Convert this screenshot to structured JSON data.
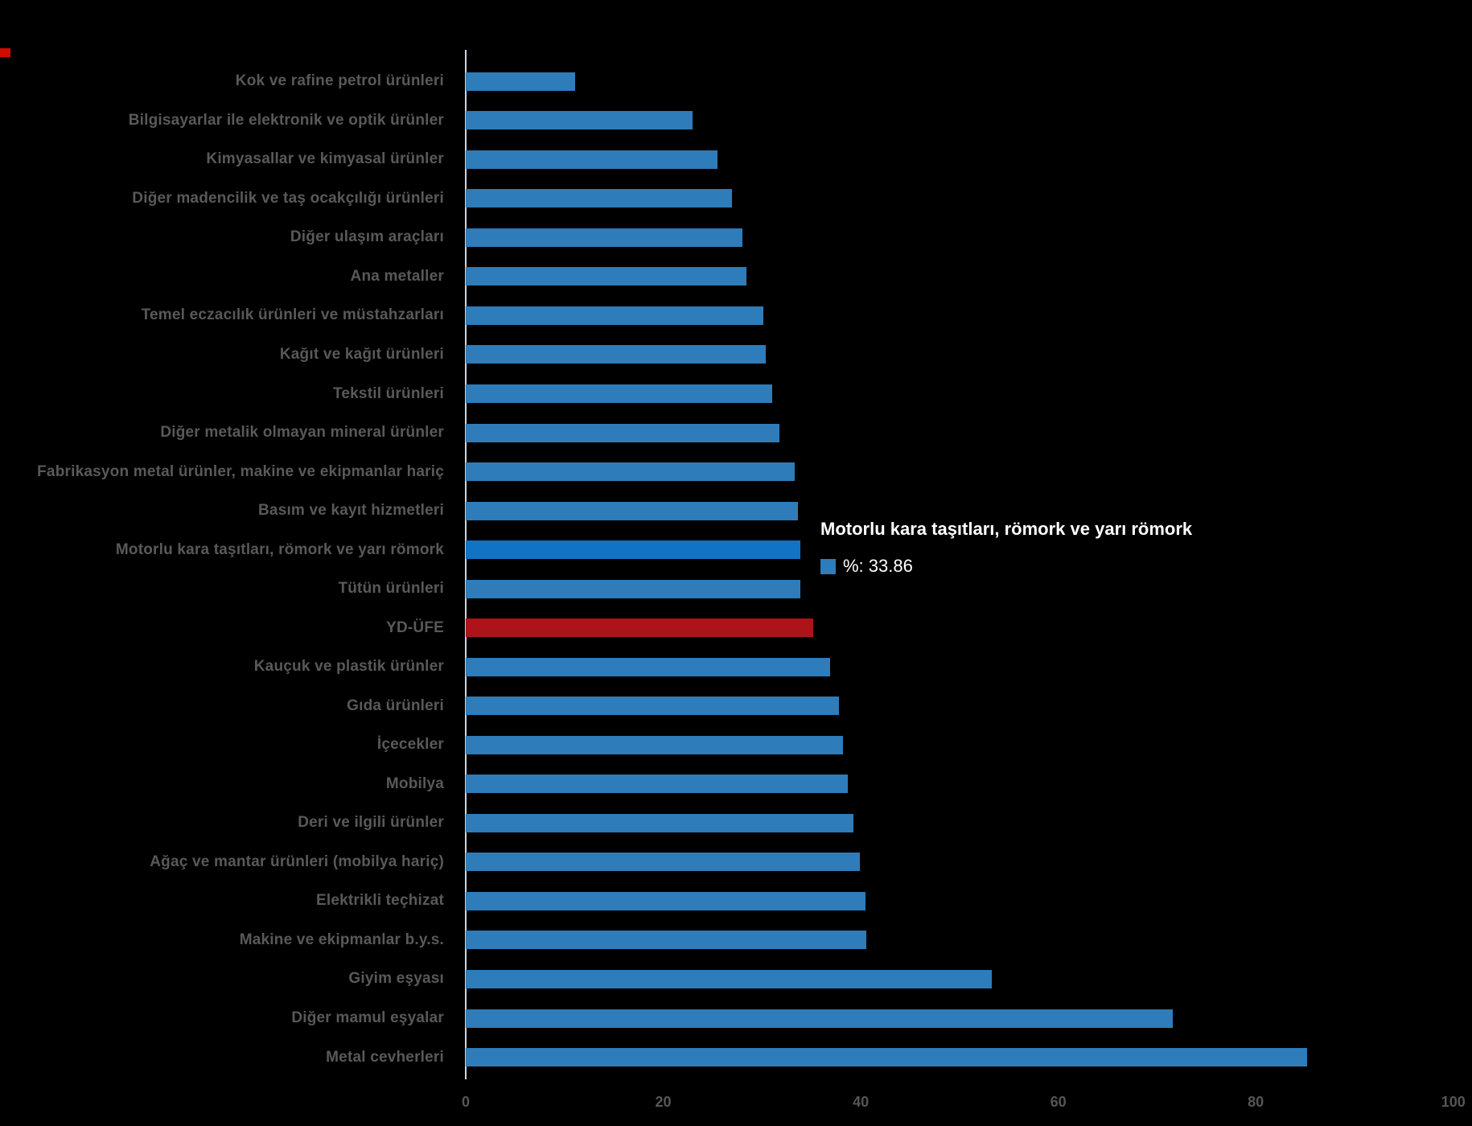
{
  "chart_data": {
    "type": "bar",
    "orientation": "horizontal",
    "title": "",
    "xlabel": "",
    "ylabel": "",
    "xlim": [
      0,
      100
    ],
    "x_ticks": [
      0,
      20,
      40,
      60,
      80,
      100
    ],
    "grid": false,
    "legend": "none",
    "categories": [
      "Kok ve rafine petrol ürünleri",
      "Bilgisayarlar ile elektronik ve optik ürünler",
      "Kimyasallar ve kimyasal ürünler",
      "Diğer madencilik ve taş ocakçılığı ürünleri",
      "Diğer ulaşım araçları",
      "Ana metaller",
      "Temel eczacılık ürünleri ve müstahzarları",
      "Kağıt ve kağıt ürünleri",
      "Tekstil ürünleri",
      "Diğer metalik olmayan mineral ürünler",
      "Fabrikasyon metal ürünler, makine ve ekipmanlar hariç",
      "Basım ve kayıt hizmetleri",
      "Motorlu kara taşıtları, römork ve yarı römork",
      "Tütün ürünleri",
      "YD-ÜFE",
      "Kauçuk ve plastik ürünler",
      "Gıda ürünleri",
      "İçecekler",
      "Mobilya",
      "Deri ve ilgili ürünler",
      "Ağaç ve mantar ürünleri (mobilya hariç)",
      "Elektrikli teçhizat",
      "Makine ve ekipmanlar b.y.s.",
      "Giyim eşyası",
      "Diğer mamul eşyalar",
      "Metal cevherleri"
    ],
    "values": [
      11.1,
      23.0,
      25.5,
      27.0,
      28.0,
      28.4,
      30.1,
      30.4,
      31.0,
      31.8,
      33.3,
      33.6,
      33.86,
      33.9,
      35.2,
      36.9,
      37.8,
      38.2,
      38.7,
      39.3,
      39.9,
      40.5,
      40.6,
      53.3,
      71.6,
      85.2
    ],
    "highlight_index": 12,
    "reference_index": 14
  },
  "tooltip": {
    "title": "Motorlu kara taşıtları, römork ve yarı römork",
    "value_text": "%: 33.86"
  },
  "colors": {
    "background": "#000000",
    "default_bar": "#2e7cb9",
    "highlight_bar": "#1173c5",
    "reference_bar": "#ad1419",
    "axis_line": "#cdd5dc",
    "label_text": "#595959",
    "tick_text": "#565656",
    "tooltip_text": "#ffffff",
    "tooltip_swatch": "#2e7cb9",
    "red_dot": "#d00b00"
  }
}
